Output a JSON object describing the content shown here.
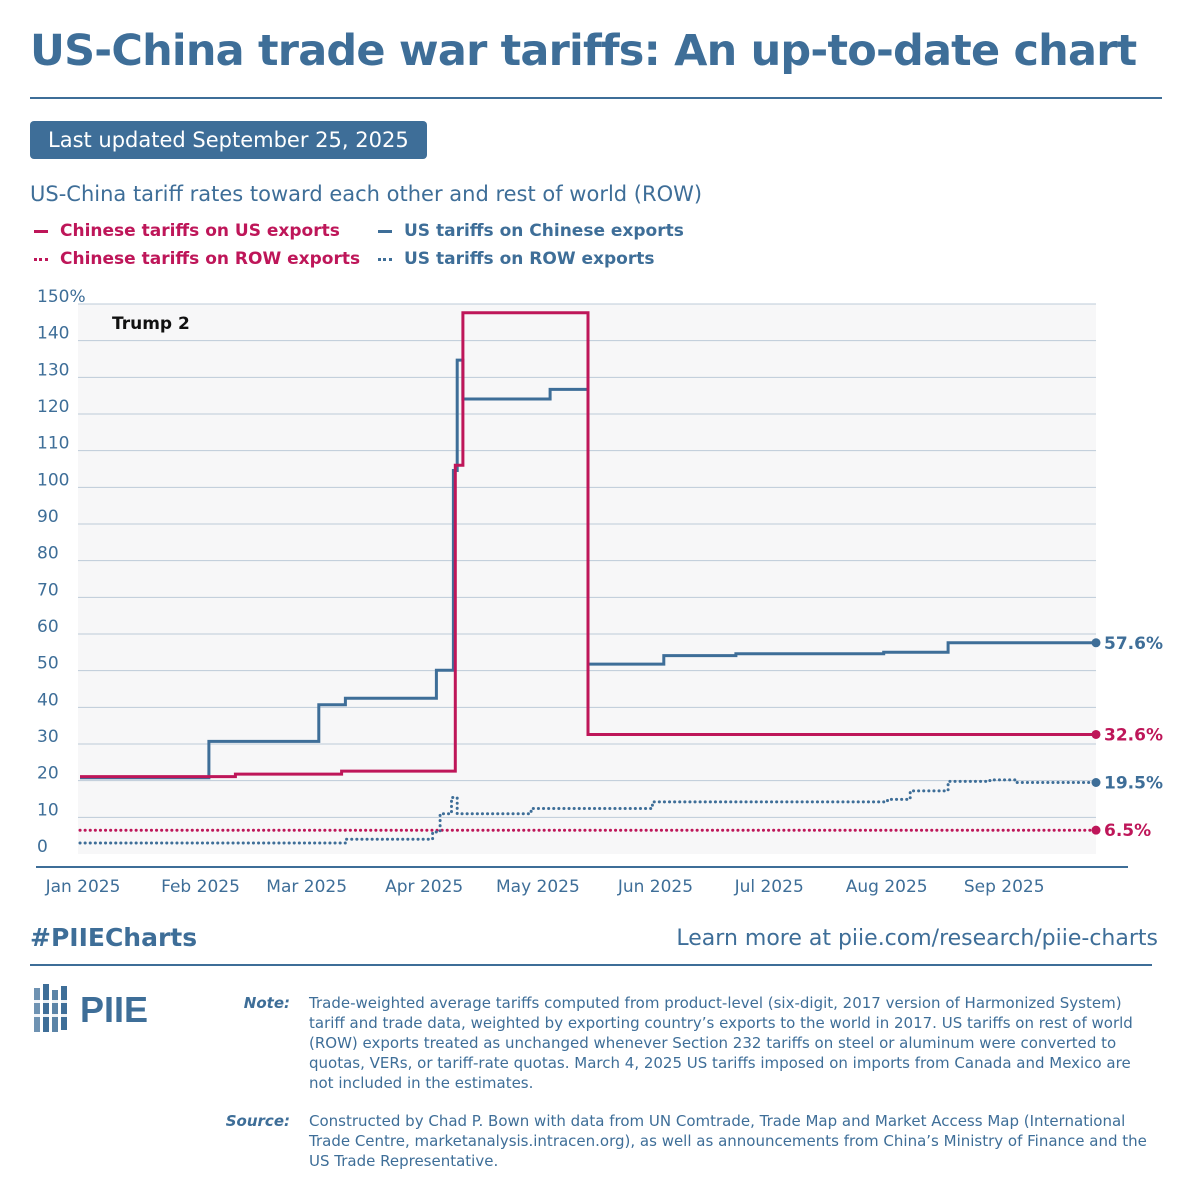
{
  "header": {
    "title": "US-China trade war tariffs: An up-to-date chart",
    "updated": "Last updated September 25, 2025",
    "subtitle": "US-China tariff rates toward each other and rest of world (ROW)"
  },
  "footer": {
    "hashtag": "#PIIECharts",
    "learn_more": "Learn more at piie.com/research/piie-charts",
    "logo_text": "PIIE",
    "note_label": "Note:",
    "note_text": "Trade-weighted average tariffs computed from product-level (six-digit, 2017 version of Harmonized System) tariff and trade data, weighted by exporting country’s exports to the world in 2017. US tariffs on rest of world (ROW) exports treated as unchanged whenever Section 232 tariffs on steel or aluminum were converted to quotas, VERs, or tariff-rate quotas. March 4, 2025 US tariffs imposed on imports from Canada and Mexico are not included in the estimates.",
    "source_label": "Source:",
    "source_text": "Constructed by Chad P. Bown with data from UN Comtrade, Trade Map and Market Access Map (International Trade Centre, marketanalysis.intracen.org), as well as announcements from China’s Ministry of Finance and the US Trade Representative."
  },
  "colors": {
    "china": "#be1659",
    "us": "#3e6e98",
    "grid": "#bccbd9",
    "plot_bg": "#f7f7f8"
  },
  "chart_data": {
    "type": "line",
    "annotation": "Trump 2",
    "x_unit": "days since Jan 1, 2025",
    "xlim": [
      0,
      268
    ],
    "ylim": [
      0,
      150
    ],
    "y_ticks": [
      {
        "value": 150,
        "label": "150%"
      },
      {
        "value": 140,
        "label": "140"
      },
      {
        "value": 130,
        "label": "130"
      },
      {
        "value": 120,
        "label": "120"
      },
      {
        "value": 110,
        "label": "110"
      },
      {
        "value": 100,
        "label": "100"
      },
      {
        "value": 90,
        "label": "90"
      },
      {
        "value": 80,
        "label": "80"
      },
      {
        "value": 70,
        "label": "70"
      },
      {
        "value": 60,
        "label": "60"
      },
      {
        "value": 50,
        "label": "50"
      },
      {
        "value": 40,
        "label": "40"
      },
      {
        "value": 30,
        "label": "30"
      },
      {
        "value": 20,
        "label": "20"
      },
      {
        "value": 10,
        "label": "10"
      },
      {
        "value": 0,
        "label": "0"
      }
    ],
    "x_ticks": [
      {
        "value": 0,
        "label": "Jan 2025"
      },
      {
        "value": 31,
        "label": "Feb 2025"
      },
      {
        "value": 59,
        "label": "Mar 2025"
      },
      {
        "value": 90,
        "label": "Apr 2025"
      },
      {
        "value": 120,
        "label": "May 2025"
      },
      {
        "value": 151,
        "label": "Jun 2025"
      },
      {
        "value": 181,
        "label": "Jul 2025"
      },
      {
        "value": 212,
        "label": "Aug 2025"
      },
      {
        "value": 243,
        "label": "Sep 2025"
      }
    ],
    "series": [
      {
        "name": "US tariffs on Chinese exports",
        "style": "solid",
        "color": "#3e6e98",
        "end_label": "57.6%",
        "points": [
          [
            0,
            20.8
          ],
          [
            34,
            20.8
          ],
          [
            34,
            30.7
          ],
          [
            63,
            30.7
          ],
          [
            63,
            40.7
          ],
          [
            70,
            40.7
          ],
          [
            70,
            42.5
          ],
          [
            94,
            42.5
          ],
          [
            94,
            50.1
          ],
          [
            98.5,
            50.1
          ],
          [
            98.5,
            104.6
          ],
          [
            99.5,
            104.6
          ],
          [
            99.5,
            134.7
          ],
          [
            101,
            134.7
          ],
          [
            101,
            124.1
          ],
          [
            124,
            124.1
          ],
          [
            124,
            126.7
          ],
          [
            134,
            126.7
          ],
          [
            134,
            51.8
          ],
          [
            154,
            51.8
          ],
          [
            154,
            54.1
          ],
          [
            173,
            54.1
          ],
          [
            173,
            54.6
          ],
          [
            212,
            54.6
          ],
          [
            212,
            55
          ],
          [
            229,
            55
          ],
          [
            229,
            57.6
          ],
          [
            268,
            57.6
          ]
        ]
      },
      {
        "name": "Chinese tariffs on US exports",
        "style": "solid",
        "color": "#be1659",
        "end_label": "32.6%",
        "points": [
          [
            0,
            21.1
          ],
          [
            41,
            21.1
          ],
          [
            41,
            21.8
          ],
          [
            69,
            21.8
          ],
          [
            69,
            22.6
          ],
          [
            99,
            22.6
          ],
          [
            99,
            106.0
          ],
          [
            101,
            106.0
          ],
          [
            101,
            147.6
          ],
          [
            134,
            147.6
          ],
          [
            134,
            32.6
          ],
          [
            268,
            32.6
          ]
        ]
      },
      {
        "name": "US tariffs on ROW exports",
        "style": "dotted",
        "color": "#3e6e98",
        "end_label": "19.5%",
        "points": [
          [
            0,
            3.0
          ],
          [
            70,
            3.0
          ],
          [
            70,
            4.0
          ],
          [
            93,
            4.0
          ],
          [
            93,
            6.0
          ],
          [
            95,
            6.0
          ],
          [
            95,
            11.0
          ],
          [
            98,
            11.0
          ],
          [
            98,
            15.4
          ],
          [
            99.5,
            15.4
          ],
          [
            99.5,
            11.0
          ],
          [
            119,
            11.0
          ],
          [
            119,
            12.4
          ],
          [
            151,
            12.4
          ],
          [
            151,
            14.2
          ],
          [
            213,
            14.2
          ],
          [
            213,
            14.9
          ],
          [
            219,
            14.9
          ],
          [
            219,
            17.2
          ],
          [
            229,
            17.2
          ],
          [
            229,
            19.8
          ],
          [
            240,
            19.8
          ],
          [
            240,
            20.2
          ],
          [
            247,
            20.2
          ],
          [
            247,
            19.5
          ],
          [
            268,
            19.5
          ]
        ]
      },
      {
        "name": "Chinese tariffs on ROW exports",
        "style": "dotted",
        "color": "#be1659",
        "end_label": "6.5%",
        "points": [
          [
            0,
            6.5
          ],
          [
            268,
            6.5
          ]
        ]
      }
    ]
  }
}
